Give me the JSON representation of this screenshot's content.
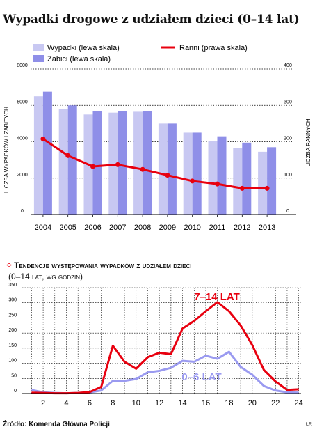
{
  "title": "Wypadki drogowe z udziałem dzieci (0–14 lat)",
  "source": "Źródło: Komenda Główna Policji",
  "credit": "ŁR",
  "colors": {
    "wypadki": "#c8c8f2",
    "zabici": "#8f8fe8",
    "ranni": "#e8000f",
    "young": "#9a9af0"
  },
  "chart_data": [
    {
      "type": "bar",
      "categories": [
        "2004",
        "2005",
        "2006",
        "2007",
        "2008",
        "2009",
        "2010",
        "2011",
        "2012",
        "2013"
      ],
      "series": [
        {
          "name": "Wypadki (lewa skala)",
          "axis": "left",
          "kind": "bar",
          "values": [
            6500,
            5800,
            5500,
            5600,
            5650,
            5000,
            4500,
            4050,
            3650,
            3450
          ]
        },
        {
          "name": "Zabici (lewa skala)",
          "axis": "left",
          "kind": "bar",
          "values": [
            6750,
            6000,
            5700,
            5700,
            5700,
            5000,
            4500,
            4300,
            3950,
            3700
          ]
        },
        {
          "name": "Ranni (prawa skala)",
          "axis": "right",
          "kind": "line",
          "values": [
            208,
            162,
            132,
            137,
            124,
            108,
            92,
            84,
            72,
            72
          ]
        }
      ],
      "left_axis": {
        "label": "LICZBA WYPADKÓW I ZABITYCH",
        "ticks": [
          "0",
          "2000",
          "4000",
          "6000",
          "8000"
        ],
        "ylim": [
          0,
          8000
        ]
      },
      "right_axis": {
        "label": "LICZBA RANNYCH",
        "ticks": [
          "0",
          "100",
          "200",
          "300",
          "400"
        ],
        "ylim": [
          0,
          400
        ]
      },
      "grid": true
    },
    {
      "type": "line",
      "title": "Tendencje występowania wypadków z udziałem dzieci",
      "subtitle": "(0–14 lat, wg godzin)",
      "x": [
        1,
        2,
        3,
        4,
        5,
        6,
        7,
        8,
        9,
        10,
        11,
        12,
        13,
        14,
        15,
        16,
        17,
        18,
        19,
        20,
        21,
        22,
        23,
        24
      ],
      "xticks": [
        "2",
        "4",
        "6",
        "8",
        "10",
        "12",
        "14",
        "16",
        "18",
        "20",
        "22",
        "24"
      ],
      "yticks": [
        "0",
        "50",
        "100",
        "150",
        "200",
        "250",
        "300",
        "350"
      ],
      "ylim": [
        0,
        350
      ],
      "series": [
        {
          "name": "7–14 LAT",
          "values": [
            3,
            2,
            1,
            1,
            2,
            5,
            22,
            158,
            105,
            82,
            120,
            135,
            130,
            215,
            240,
            272,
            302,
            272,
            225,
            160,
            78,
            40,
            12,
            14
          ]
        },
        {
          "name": "0–6 LAT",
          "values": [
            12,
            4,
            2,
            1,
            2,
            4,
            10,
            42,
            42,
            48,
            70,
            75,
            85,
            108,
            105,
            125,
            115,
            138,
            88,
            62,
            25,
            10,
            4,
            3
          ]
        }
      ],
      "grid": true
    }
  ]
}
